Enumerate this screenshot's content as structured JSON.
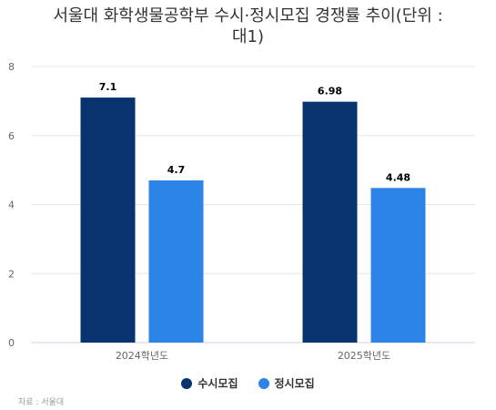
{
  "chart_data": {
    "type": "bar",
    "title": "서울대 화학생물공학부 수시·정시모집 경쟁률 추이(단위 : 대1)",
    "title_lines": [
      "서울대 화학생물공학부 수시·정시모집 경쟁률 추이(단위 :",
      "대1)"
    ],
    "categories": [
      "2024학년도",
      "2025학년도"
    ],
    "series": [
      {
        "name": "수시모집",
        "values": [
          7.1,
          6.98
        ],
        "labels": [
          "7.1",
          "6.98"
        ],
        "color": "#08336e"
      },
      {
        "name": "정시모집",
        "values": [
          4.7,
          4.48
        ],
        "labels": [
          "4.7",
          "4.48"
        ],
        "color": "#2c84e6"
      }
    ],
    "ylim": [
      0,
      8
    ],
    "yticks": [
      "0",
      "2",
      "4",
      "6",
      "8"
    ],
    "xlabel": "",
    "ylabel": "",
    "grid": true,
    "legend": "bottom-center"
  },
  "source": "자료 : 서울대"
}
